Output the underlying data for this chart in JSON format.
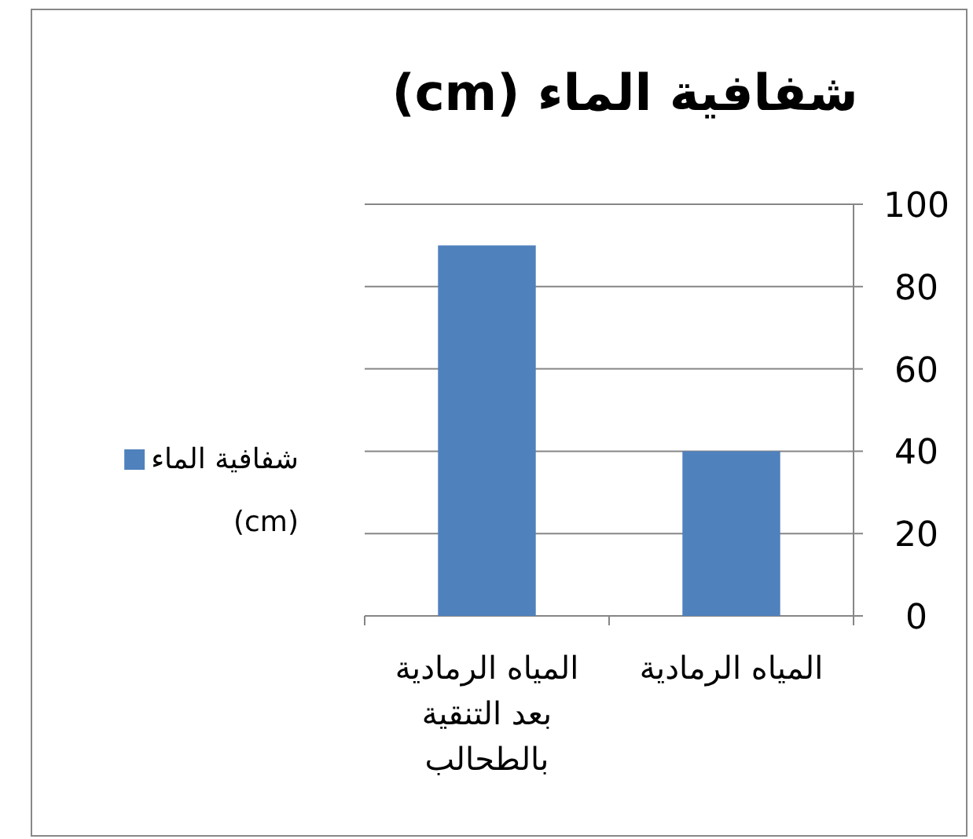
{
  "chart_data": {
    "type": "bar",
    "title": "شفافية الماء (cm)",
    "categories": [
      "المياه الرمادية بعد التنقية بالطحالب",
      "المياه الرمادية"
    ],
    "series": [
      {
        "name": "شفافية الماء (cm)",
        "color": "#4f81bd",
        "values": [
          90,
          40
        ]
      }
    ],
    "ylim": [
      0,
      100
    ],
    "yticks": [
      0,
      20,
      40,
      60,
      80,
      100
    ],
    "grid": "y",
    "legend": "left"
  }
}
